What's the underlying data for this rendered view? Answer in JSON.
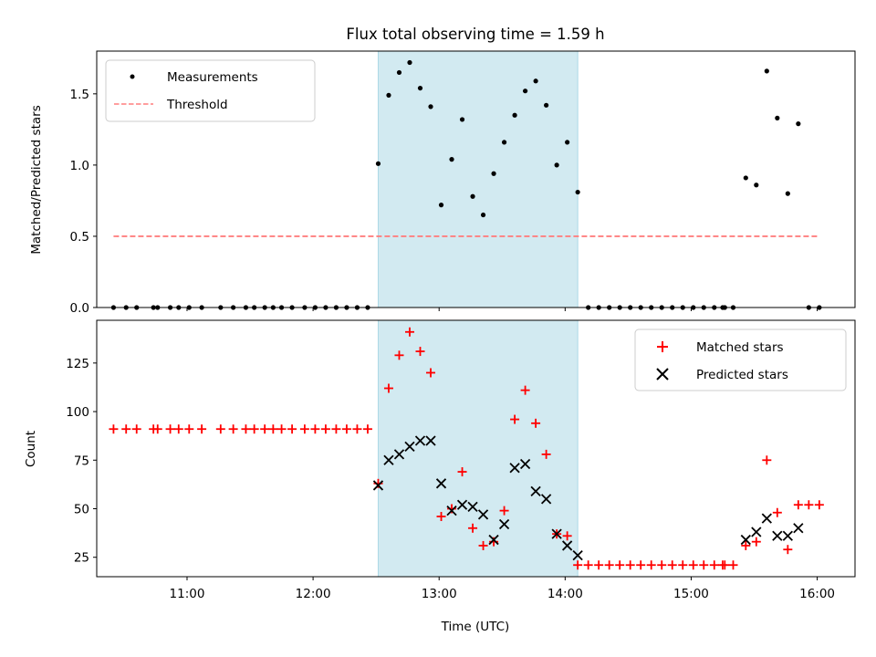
{
  "figure": {
    "title": "Flux total observing time = 1.59 h"
  },
  "chart_data": [
    {
      "type": "scatter",
      "ylabel": "Matched/Predicted stars",
      "ylim": [
        0,
        1.8
      ],
      "yticks": [
        0.0,
        0.5,
        1.0,
        1.5
      ],
      "ytick_labels": [
        "0.0",
        "0.5",
        "1.0",
        "1.5"
      ],
      "xlim": [
        "10:17",
        "16:18"
      ],
      "highlight_span": {
        "start": "12:31",
        "end": "14:06",
        "color": "#add8e6"
      },
      "legend_position": "upper left",
      "series": [
        {
          "name": "Measurements",
          "marker": "dot",
          "color": "#000000",
          "x": [
            "10:25",
            "10:31",
            "10:36",
            "10:44",
            "10:46",
            "10:52",
            "10:56",
            "11:01",
            "11:07",
            "11:16",
            "11:22",
            "11:28",
            "11:32",
            "11:37",
            "11:41",
            "11:45",
            "11:50",
            "11:56",
            "12:01",
            "12:06",
            "12:11",
            "12:16",
            "12:21",
            "12:26",
            "12:31",
            "12:36",
            "12:41",
            "12:46",
            "12:51",
            "12:56",
            "13:01",
            "13:06",
            "13:11",
            "13:16",
            "13:21",
            "13:26",
            "13:31",
            "13:36",
            "13:41",
            "13:46",
            "13:51",
            "13:56",
            "14:01",
            "14:06",
            "14:11",
            "14:16",
            "14:21",
            "14:26",
            "14:31",
            "14:36",
            "14:41",
            "14:46",
            "14:51",
            "14:56",
            "15:01",
            "15:06",
            "15:11",
            "15:15",
            "15:16",
            "15:20",
            "15:26",
            "15:31",
            "15:36",
            "15:41",
            "15:46",
            "15:51",
            "15:56",
            "16:01"
          ],
          "y": [
            0,
            0,
            0,
            0,
            0,
            0,
            0,
            0,
            0,
            0,
            0,
            0,
            0,
            0,
            0,
            0,
            0,
            0,
            0,
            0,
            0,
            0,
            0,
            0,
            1.01,
            1.49,
            1.65,
            1.72,
            1.54,
            1.41,
            0.72,
            1.04,
            1.32,
            0.78,
            0.65,
            0.94,
            1.16,
            1.35,
            1.52,
            1.59,
            1.42,
            1.0,
            1.16,
            0.81,
            0,
            0,
            0,
            0,
            0,
            0,
            0,
            0,
            0,
            0,
            0,
            0,
            0,
            0,
            0,
            0,
            0.91,
            0.86,
            1.66,
            1.33,
            0.8,
            1.29,
            0,
            0
          ]
        },
        {
          "name": "Threshold",
          "line": "dashed",
          "color": "#ff7f7f",
          "x": [
            "10:25",
            "16:01"
          ],
          "y": [
            0.5,
            0.5
          ]
        }
      ]
    },
    {
      "type": "scatter",
      "xlabel": "Time (UTC)",
      "ylabel": "Count",
      "ylim": [
        15,
        147
      ],
      "yticks": [
        25,
        50,
        75,
        100,
        125
      ],
      "ytick_labels": [
        "25",
        "50",
        "75",
        "100",
        "125"
      ],
      "xlim": [
        "10:17",
        "16:18"
      ],
      "xticks": [
        "11:00",
        "12:00",
        "13:00",
        "14:00",
        "15:00",
        "16:00"
      ],
      "xtick_labels": [
        "11:00",
        "12:00",
        "13:00",
        "14:00",
        "15:00",
        "16:00"
      ],
      "highlight_span": {
        "start": "12:31",
        "end": "14:06",
        "color": "#add8e6"
      },
      "legend_position": "upper right",
      "series": [
        {
          "name": "Matched stars",
          "marker": "plus",
          "color": "#ff0000",
          "x": [
            "10:25",
            "10:31",
            "10:36",
            "10:44",
            "10:46",
            "10:52",
            "10:56",
            "11:01",
            "11:07",
            "11:16",
            "11:22",
            "11:28",
            "11:32",
            "11:37",
            "11:41",
            "11:45",
            "11:50",
            "11:56",
            "12:01",
            "12:06",
            "12:11",
            "12:16",
            "12:21",
            "12:26",
            "12:31",
            "12:36",
            "12:41",
            "12:46",
            "12:51",
            "12:56",
            "13:01",
            "13:06",
            "13:11",
            "13:16",
            "13:21",
            "13:26",
            "13:31",
            "13:36",
            "13:41",
            "13:46",
            "13:51",
            "13:56",
            "14:01",
            "14:06",
            "14:11",
            "14:16",
            "14:21",
            "14:26",
            "14:31",
            "14:36",
            "14:41",
            "14:46",
            "14:51",
            "14:56",
            "15:01",
            "15:06",
            "15:11",
            "15:15",
            "15:16",
            "15:20",
            "15:26",
            "15:31",
            "15:36",
            "15:41",
            "15:46",
            "15:51",
            "15:56",
            "16:01"
          ],
          "y": [
            91,
            91,
            91,
            91,
            91,
            91,
            91,
            91,
            91,
            91,
            91,
            91,
            91,
            91,
            91,
            91,
            91,
            91,
            91,
            91,
            91,
            91,
            91,
            91,
            63,
            112,
            129,
            141,
            131,
            120,
            46,
            50,
            69,
            40,
            31,
            33,
            49,
            96,
            111,
            94,
            78,
            37,
            36,
            21,
            21,
            21,
            21,
            21,
            21,
            21,
            21,
            21,
            21,
            21,
            21,
            21,
            21,
            21,
            21,
            21,
            31,
            33,
            75,
            48,
            29,
            52,
            52,
            52
          ]
        },
        {
          "name": "Predicted stars",
          "marker": "x",
          "color": "#000000",
          "x": [
            "12:31",
            "12:36",
            "12:41",
            "12:46",
            "12:51",
            "12:56",
            "13:01",
            "13:06",
            "13:11",
            "13:16",
            "13:21",
            "13:26",
            "13:31",
            "13:36",
            "13:41",
            "13:46",
            "13:51",
            "13:56",
            "14:01",
            "14:06",
            "15:26",
            "15:31",
            "15:36",
            "15:41",
            "15:46",
            "15:51"
          ],
          "y": [
            62,
            75,
            78,
            82,
            85,
            85,
            63,
            49,
            52,
            51,
            47,
            34,
            42,
            71,
            73,
            59,
            55,
            37,
            31,
            26,
            34,
            38,
            45,
            36,
            36,
            40
          ]
        }
      ]
    }
  ]
}
